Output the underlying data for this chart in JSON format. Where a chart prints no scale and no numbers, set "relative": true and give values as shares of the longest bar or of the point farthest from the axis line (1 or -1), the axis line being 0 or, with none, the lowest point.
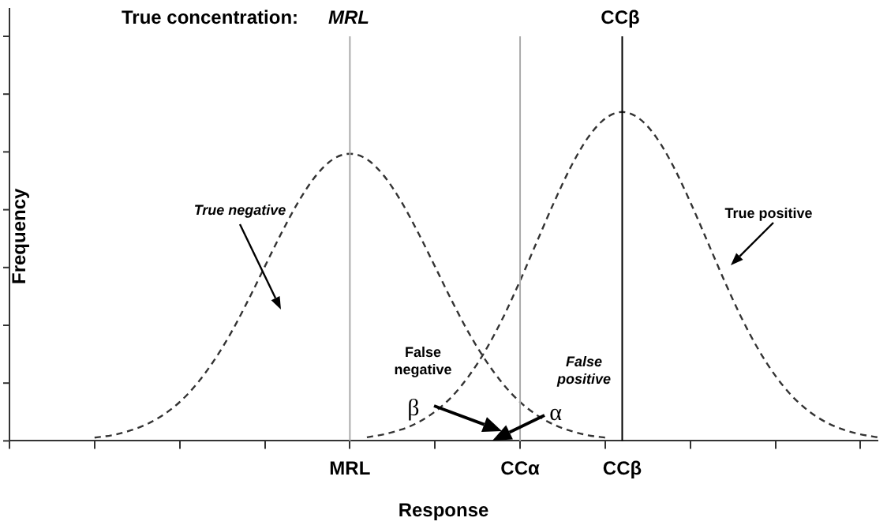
{
  "chart_data": {
    "type": "line",
    "relative": true,
    "title": "True concentration:",
    "xlabel": "Response",
    "ylabel": "Frequency",
    "categories": [
      null,
      null,
      null,
      null,
      null,
      null,
      null,
      null,
      null,
      null,
      null,
      null,
      null,
      null,
      null,
      null,
      null,
      null,
      null,
      null,
      "MRL",
      null,
      null,
      null,
      null,
      null,
      null,
      null,
      null,
      null,
      "CCα",
      null,
      null,
      null,
      null,
      null,
      "CCβ",
      null,
      null,
      null,
      null,
      null,
      null,
      null,
      null,
      null,
      null,
      null,
      null,
      null,
      null,
      null
    ],
    "series": [
      {
        "color": "#333333",
        "values": [
          null,
          null,
          null,
          null,
          null,
          0.01,
          0.017,
          0.03,
          0.049,
          0.078,
          0.118,
          0.173,
          0.243,
          0.327,
          0.425,
          0.53,
          0.634,
          0.729,
          0.806,
          0.856,
          0.873,
          0.856,
          0.806,
          0.729,
          0.634,
          0.53,
          0.425,
          0.327,
          0.243,
          0.173,
          0.118,
          0.078,
          0.049,
          0.03,
          0.017,
          0.01,
          null,
          null,
          null,
          null,
          null,
          null,
          null,
          null,
          null,
          null,
          null,
          null,
          null,
          null,
          null,
          null
        ]
      },
      {
        "color": "#333333",
        "values": [
          null,
          null,
          null,
          null,
          null,
          null,
          null,
          null,
          null,
          null,
          null,
          null,
          null,
          null,
          null,
          null,
          null,
          null,
          null,
          null,
          null,
          0.011,
          0.02,
          0.034,
          0.056,
          0.089,
          0.135,
          0.198,
          0.278,
          0.375,
          0.487,
          0.607,
          0.726,
          0.835,
          0.923,
          0.98,
          1,
          0.98,
          0.923,
          0.835,
          0.726,
          0.607,
          0.487,
          0.375,
          0.278,
          0.198,
          0.135,
          0.089,
          0.056,
          0.034,
          0.02,
          0.011
        ]
      }
    ],
    "ref_lines": [
      {
        "axis": "x",
        "value": "MRL",
        "color": "#aaaaaa"
      },
      {
        "axis": "x",
        "value": "CCα",
        "color": "#aaaaaa"
      },
      {
        "axis": "x",
        "value": "CCβ",
        "color": "#000000"
      }
    ],
    "annotations": [
      "True negative",
      "True positive",
      "False negative",
      "False positive",
      "β",
      "α",
      "MRL",
      "CCβ"
    ],
    "line_style": "dashed",
    "marker": "none",
    "legend": false,
    "grid": false
  }
}
